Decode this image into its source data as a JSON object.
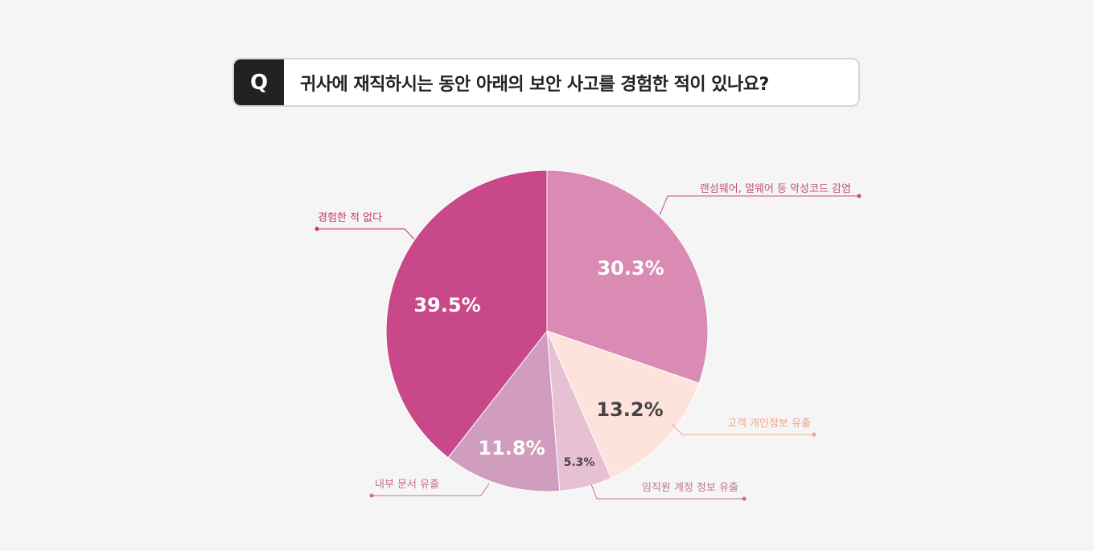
{
  "question": {
    "badge": "Q",
    "text": "귀사에 재직하시는 동안 아래의 보안 사고를 경험한 적이 있나요?"
  },
  "chart_data": {
    "type": "pie",
    "title": "",
    "slices": [
      {
        "label": "랜섬웨어, 멀웨어 등 악성코드 감염",
        "value": 30.3,
        "display": "30.3%",
        "color": "#d98bb3",
        "label_color": "#c2517f",
        "value_color": "#ffffff"
      },
      {
        "label": "고객 개인정보 유출",
        "value": 13.2,
        "display": "13.2%",
        "color": "#fde3dc",
        "label_color": "#f0a58f",
        "value_color": "#444444"
      },
      {
        "label": "임직원 계정 정보 유출",
        "value": 5.3,
        "display": "5.3%",
        "color": "#e8c0d4",
        "label_color": "#c4709a",
        "value_color": "#444444"
      },
      {
        "label": "내부 문서 유출",
        "value": 11.8,
        "display": "11.8%",
        "color": "#d09dbe",
        "label_color": "#c4709a",
        "value_color": "#ffffff"
      },
      {
        "label": "경험한 적 없다",
        "value": 39.5,
        "display": "39.5%",
        "color": "#c8488a",
        "label_color": "#c4336f",
        "value_color": "#ffffff"
      }
    ]
  }
}
